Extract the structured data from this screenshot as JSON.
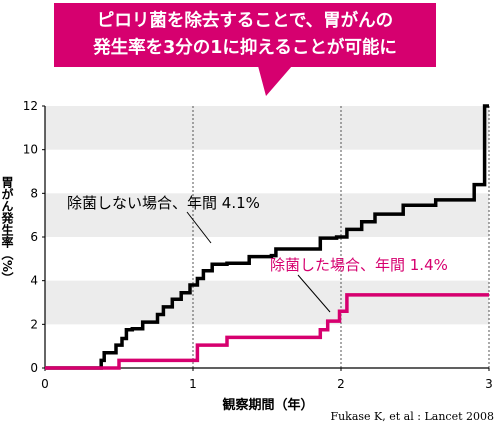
{
  "headline": {
    "line1": "ピロリ菌を除去することで、胃がんの",
    "line2": "発生率を3分の1に抑えることが可能に"
  },
  "colors": {
    "no_eradication": "#000000",
    "eradication": "#d6006f",
    "callout": "#d6006f",
    "band": "#ececec"
  },
  "chart_data": {
    "type": "line",
    "step": true,
    "xlabel": "観察期間（年）",
    "ylabel": "胃がん発生率（%）",
    "xlim": [
      0,
      3
    ],
    "ylim": [
      0,
      12
    ],
    "xticks": [
      0,
      1,
      2,
      3
    ],
    "yticks": [
      0,
      2,
      4,
      6,
      8,
      10,
      12
    ],
    "grid": "horizontal bands every 2 units, dashed vertical lines at 1, 2, 3",
    "series": [
      {
        "name": "除菌しない場合、年間 4.1%",
        "color": "#000000",
        "x": [
          0,
          0.38,
          0.38,
          0.4,
          0.4,
          0.48,
          0.48,
          0.52,
          0.52,
          0.55,
          0.55,
          0.59,
          0.59,
          0.66,
          0.66,
          0.76,
          0.76,
          0.8,
          0.8,
          0.86,
          0.86,
          0.92,
          0.92,
          0.98,
          0.98,
          1.03,
          1.03,
          1.07,
          1.07,
          1.13,
          1.13,
          1.23,
          1.23,
          1.38,
          1.38,
          1.53,
          1.53,
          1.56,
          1.56,
          1.86,
          1.86,
          1.97,
          1.97,
          2.04,
          2.04,
          2.14,
          2.14,
          2.23,
          2.23,
          2.42,
          2.42,
          2.64,
          2.64,
          2.9,
          2.9,
          2.97,
          2.97,
          3.0
        ],
        "y": [
          0,
          0,
          0.35,
          0.35,
          0.7,
          0.7,
          1.05,
          1.05,
          1.35,
          1.35,
          1.75,
          1.75,
          1.8,
          1.8,
          2.1,
          2.1,
          2.45,
          2.45,
          2.8,
          2.8,
          3.15,
          3.15,
          3.45,
          3.45,
          3.8,
          3.8,
          4.1,
          4.1,
          4.45,
          4.45,
          4.75,
          4.75,
          4.8,
          4.8,
          5.1,
          5.1,
          5.15,
          5.15,
          5.45,
          5.45,
          5.95,
          5.95,
          6.0,
          6.0,
          6.35,
          6.35,
          6.7,
          6.7,
          7.05,
          7.05,
          7.45,
          7.45,
          7.7,
          7.7,
          8.4,
          8.4,
          12.0,
          12.0
        ]
      },
      {
        "name": "除菌した場合、年間 1.4%",
        "color": "#d6006f",
        "x": [
          0,
          0.5,
          0.5,
          1.03,
          1.03,
          1.23,
          1.23,
          1.86,
          1.86,
          1.91,
          1.91,
          1.99,
          1.99,
          2.04,
          2.04,
          2.09,
          2.09,
          3.0
        ],
        "y": [
          0,
          0,
          0.35,
          0.35,
          1.05,
          1.05,
          1.4,
          1.4,
          1.75,
          1.75,
          2.15,
          2.15,
          2.6,
          2.6,
          3.35,
          3.35,
          3.35,
          3.35
        ]
      }
    ],
    "source": "Fukase K, et al : Lancet 2008"
  }
}
